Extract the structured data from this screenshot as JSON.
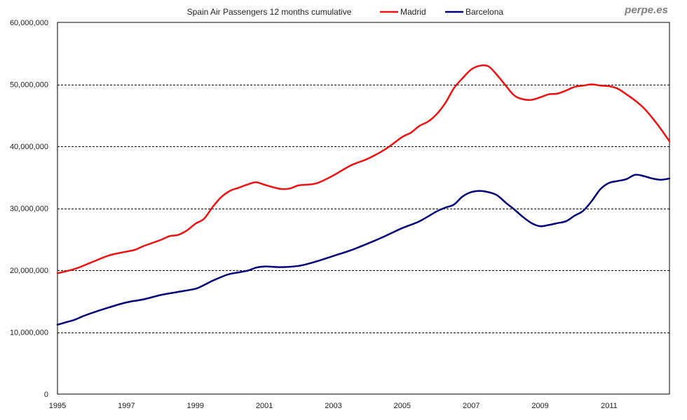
{
  "chart_data": {
    "type": "line",
    "title": "Spain Air Passengers 12 months cumulative",
    "watermark": "perpe.es",
    "xlabel": "",
    "ylabel": "",
    "xlim": [
      1995,
      2012.75
    ],
    "ylim": [
      0,
      60000000
    ],
    "grid": true,
    "legend_position": "top",
    "yticks": [
      0,
      10000000,
      20000000,
      30000000,
      40000000,
      50000000,
      60000000
    ],
    "ytick_labels": [
      "0",
      "10,000,000",
      "20,000,000",
      "30,000,000",
      "40,000,000",
      "50,000,000",
      "60,000,000"
    ],
    "xticks": [
      1995,
      1997,
      1999,
      2001,
      2003,
      2005,
      2007,
      2009,
      2011
    ],
    "xtick_labels": [
      "1995",
      "1997",
      "1999",
      "2001",
      "2003",
      "2005",
      "2007",
      "2009",
      "2011"
    ],
    "series": [
      {
        "name": "Madrid",
        "color": "#ee1111",
        "x": [
          1995,
          1995.5,
          1996,
          1996.5,
          1997,
          1997.25,
          1997.5,
          1998,
          1998.25,
          1998.5,
          1998.75,
          1999,
          1999.25,
          1999.5,
          1999.75,
          2000,
          2000.25,
          2000.5,
          2000.75,
          2001,
          2001.25,
          2001.5,
          2001.75,
          2002,
          2002.5,
          2003,
          2003.5,
          2004,
          2004.5,
          2005,
          2005.25,
          2005.5,
          2005.75,
          2006,
          2006.25,
          2006.5,
          2006.75,
          2007,
          2007.25,
          2007.5,
          2007.75,
          2008,
          2008.25,
          2008.5,
          2008.75,
          2009,
          2009.25,
          2009.5,
          2009.75,
          2010,
          2010.25,
          2010.5,
          2010.75,
          2011,
          2011.25,
          2011.5,
          2011.75,
          2012,
          2012.25,
          2012.5,
          2012.75
        ],
        "values": [
          19500000,
          20200000,
          21300000,
          22400000,
          23000000,
          23300000,
          23900000,
          24900000,
          25500000,
          25700000,
          26400000,
          27500000,
          28300000,
          30200000,
          31800000,
          32800000,
          33300000,
          33800000,
          34200000,
          33800000,
          33400000,
          33100000,
          33200000,
          33700000,
          34000000,
          35300000,
          36900000,
          38000000,
          39500000,
          41500000,
          42200000,
          43300000,
          44000000,
          45200000,
          47000000,
          49400000,
          51000000,
          52400000,
          53000000,
          52900000,
          51500000,
          49800000,
          48200000,
          47600000,
          47500000,
          47900000,
          48400000,
          48500000,
          49000000,
          49600000,
          49800000,
          50000000,
          49800000,
          49700000,
          49300000,
          48400000,
          47400000,
          46200000,
          44600000,
          42800000,
          40800000
        ]
      },
      {
        "name": "Barcelona",
        "color": "#00007a",
        "x": [
          1995,
          1995.25,
          1995.5,
          1995.75,
          1996,
          1996.5,
          1997,
          1997.5,
          1998,
          1998.5,
          1999,
          1999.25,
          1999.5,
          1999.75,
          2000,
          2000.5,
          2000.75,
          2001,
          2001.5,
          2002,
          2002.5,
          2003,
          2003.5,
          2004,
          2004.5,
          2005,
          2005.5,
          2006,
          2006.25,
          2006.5,
          2006.75,
          2007,
          2007.25,
          2007.5,
          2007.75,
          2008,
          2008.25,
          2008.5,
          2008.75,
          2009,
          2009.25,
          2009.5,
          2009.75,
          2010,
          2010.25,
          2010.5,
          2010.75,
          2011,
          2011.25,
          2011.5,
          2011.75,
          2012,
          2012.25,
          2012.5,
          2012.75
        ],
        "values": [
          11200000,
          11600000,
          12000000,
          12600000,
          13100000,
          14000000,
          14800000,
          15300000,
          16000000,
          16500000,
          17000000,
          17600000,
          18300000,
          18900000,
          19400000,
          19900000,
          20400000,
          20600000,
          20500000,
          20700000,
          21400000,
          22300000,
          23200000,
          24300000,
          25500000,
          26800000,
          27900000,
          29500000,
          30100000,
          30600000,
          31900000,
          32600000,
          32800000,
          32600000,
          32100000,
          30900000,
          29800000,
          28600000,
          27600000,
          27100000,
          27300000,
          27600000,
          27900000,
          28800000,
          29600000,
          31200000,
          33100000,
          34100000,
          34400000,
          34700000,
          35400000,
          35200000,
          34800000,
          34600000,
          34800000
        ]
      }
    ]
  }
}
